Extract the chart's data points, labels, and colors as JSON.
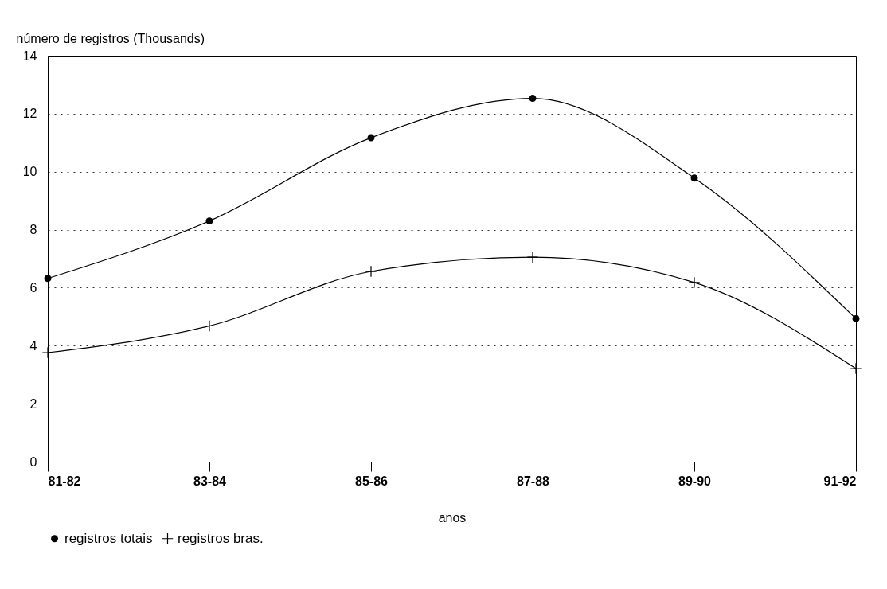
{
  "chart_data": {
    "type": "line",
    "ylabel": "número de registros (Thousands)",
    "xlabel": "anos",
    "categories": [
      "81-82",
      "83-84",
      "85-86",
      "87-88",
      "89-90",
      "91-92"
    ],
    "series": [
      {
        "name": "registros totais",
        "color": "#000000",
        "marker": "circle",
        "values": [
          6.32,
          8.3,
          11.17,
          12.53,
          9.78,
          4.93
        ]
      },
      {
        "name": "registros bras.",
        "color": "#000000",
        "marker": "cross",
        "values": [
          3.76,
          4.68,
          6.56,
          7.05,
          6.18,
          3.21
        ]
      }
    ],
    "ylim": [
      0,
      14
    ],
    "yticks": [
      0,
      2,
      4,
      6,
      8,
      10,
      12,
      14
    ],
    "grid": "y",
    "legend": "bottom",
    "line_style": "solid"
  }
}
